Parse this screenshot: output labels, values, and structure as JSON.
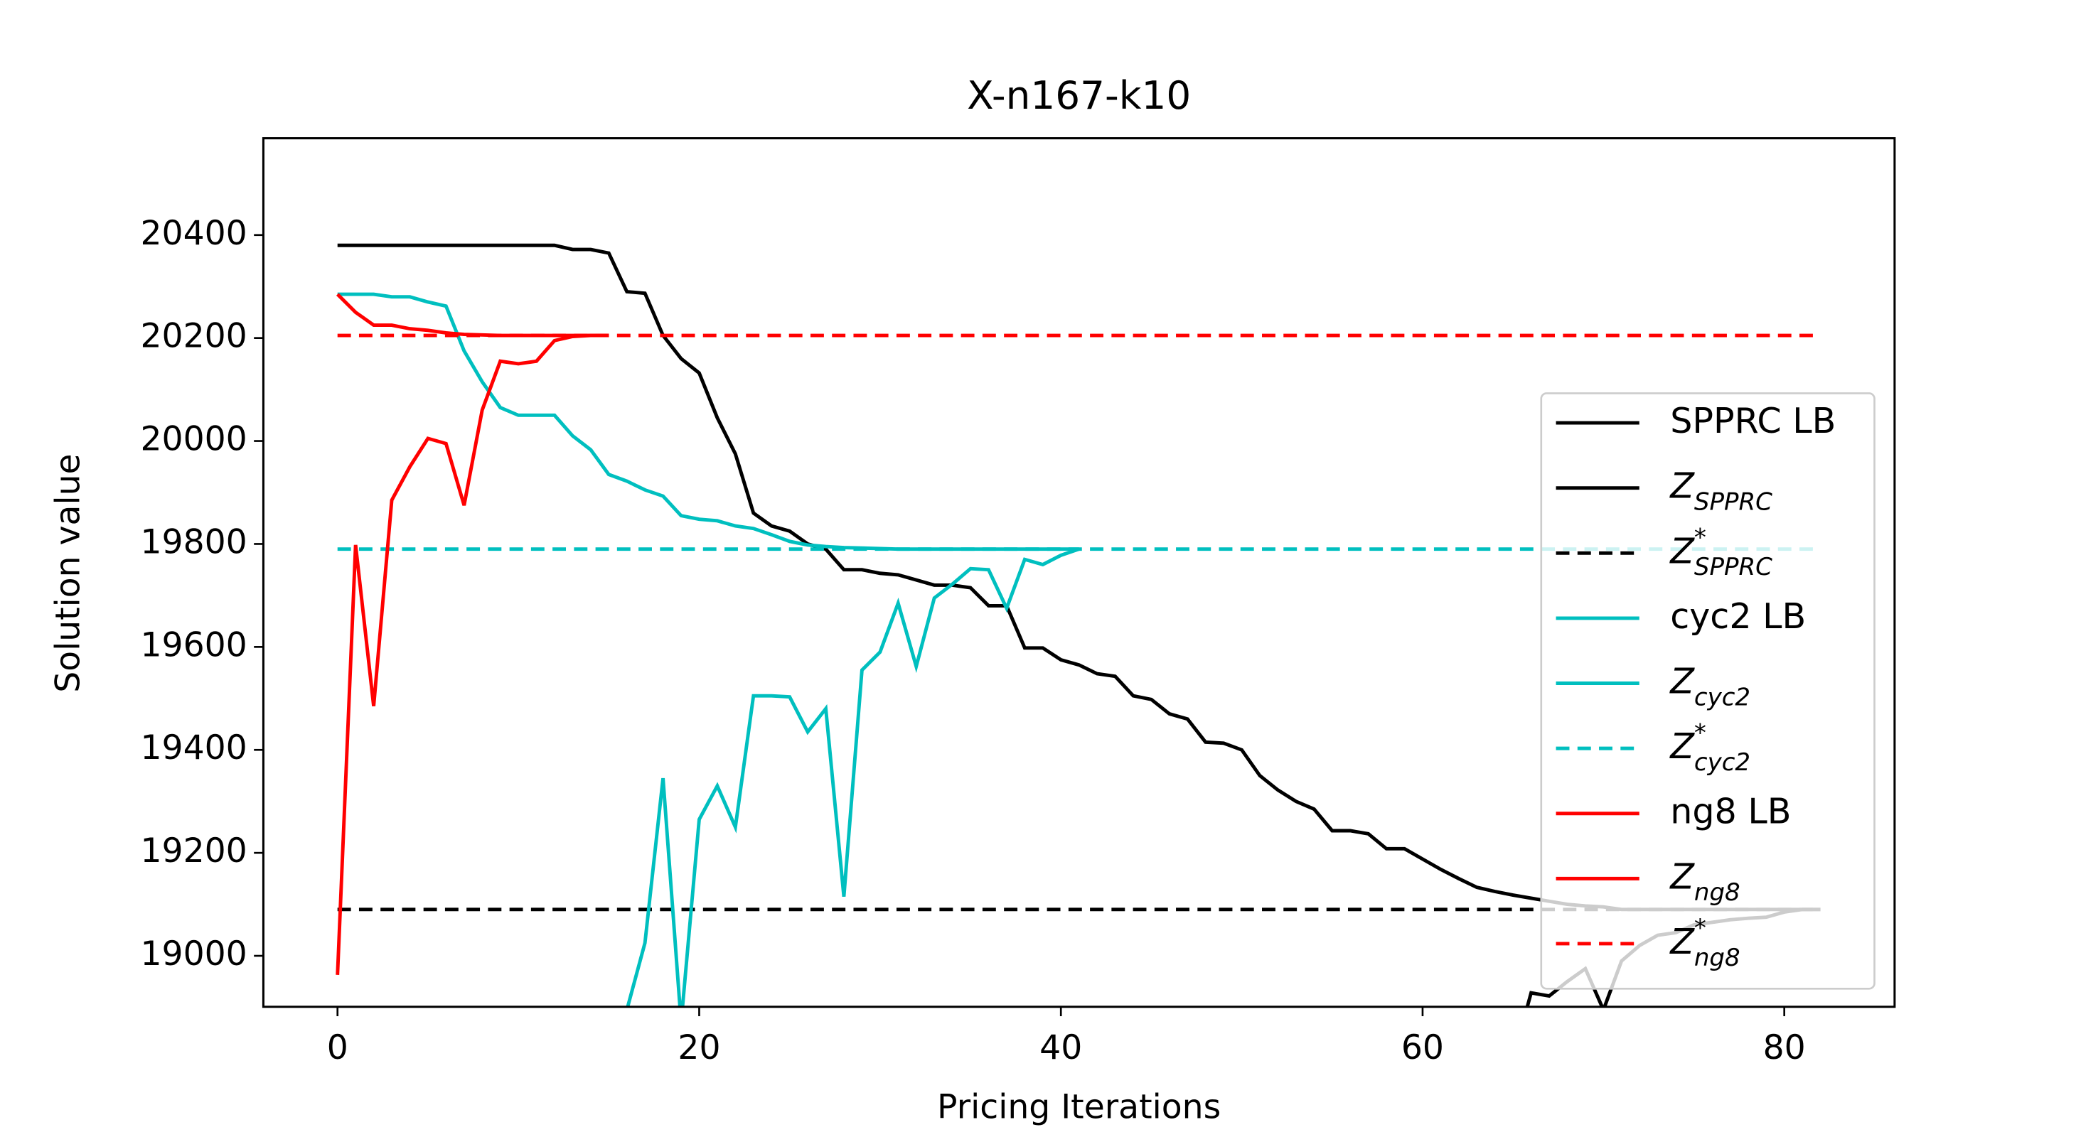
{
  "chart_data": {
    "type": "line",
    "title": "X-n167-k10",
    "x_label": "Pricing Iterations",
    "y_label": "Solution value",
    "xlim": [
      -4.1,
      86.1
    ],
    "xticks": [
      0,
      20,
      40,
      60,
      80
    ],
    "ylim": [
      18901,
      20588
    ],
    "yticks": [
      19000,
      19200,
      19400,
      19600,
      19800,
      20000,
      20200,
      20400
    ],
    "legend": "right",
    "series": [
      {
        "name": "SPPRC LB",
        "color": "#000000",
        "linestyle": "solid",
        "x": [
          65,
          66,
          67,
          68,
          69,
          70,
          71,
          72,
          73,
          74,
          75,
          76,
          77,
          78,
          79,
          80,
          81,
          82
        ],
        "values": [
          18800,
          18928,
          18922,
          18950,
          18975,
          18895,
          18990,
          19020,
          19040,
          19045,
          19060,
          19065,
          19070,
          19073,
          19075,
          19085,
          19090,
          19090
        ]
      },
      {
        "name": "Z",
        "name_sub": "SPPRC",
        "color": "#000000",
        "linestyle": "solid",
        "x": [
          0,
          1,
          2,
          3,
          4,
          5,
          6,
          7,
          8,
          9,
          10,
          11,
          12,
          13,
          14,
          15,
          16,
          17,
          18,
          19,
          20,
          21,
          22,
          23,
          24,
          25,
          26,
          27,
          28,
          29,
          30,
          31,
          32,
          33,
          34,
          35,
          36,
          37,
          38,
          39,
          40,
          41,
          42,
          43,
          44,
          45,
          46,
          47,
          48,
          49,
          50,
          51,
          52,
          53,
          54,
          55,
          56,
          57,
          58,
          59,
          60,
          61,
          62,
          63,
          64,
          65,
          66,
          67,
          68,
          69,
          70,
          71,
          72,
          73,
          74,
          75,
          76,
          77,
          78,
          79,
          80,
          81,
          82
        ],
        "values": [
          20380,
          20380,
          20380,
          20380,
          20380,
          20380,
          20380,
          20380,
          20380,
          20380,
          20380,
          20380,
          20380,
          20372,
          20372,
          20365,
          20290,
          20287,
          20205,
          20160,
          20132,
          20045,
          19975,
          19860,
          19835,
          19825,
          19800,
          19790,
          19750,
          19750,
          19743,
          19740,
          19730,
          19720,
          19720,
          19715,
          19680,
          19680,
          19598,
          19598,
          19575,
          19565,
          19548,
          19543,
          19505,
          19498,
          19470,
          19460,
          19415,
          19413,
          19400,
          19350,
          19322,
          19300,
          19285,
          19243,
          19243,
          19237,
          19208,
          19208,
          19188,
          19168,
          19150,
          19133,
          19125,
          19118,
          19112,
          19106,
          19100,
          19097,
          19095,
          19090,
          19090,
          19090,
          19090,
          19090,
          19090,
          19090,
          19090,
          19090,
          19090,
          19090,
          19090
        ]
      },
      {
        "name": "Z",
        "name_sub": "SPPRC",
        "name_sup": "*",
        "color": "#000000",
        "linestyle": "dashed",
        "x": [
          0,
          82
        ],
        "values": [
          19090,
          19090
        ]
      },
      {
        "name": "cyc2 LB",
        "color": "#00bfbf",
        "linestyle": "solid",
        "x": [
          16,
          17,
          18,
          19,
          20,
          21,
          22,
          23,
          24,
          25,
          26,
          27,
          28,
          29,
          30,
          31,
          32,
          33,
          34,
          35,
          36,
          37,
          38,
          39,
          40,
          41
        ],
        "values": [
          18895,
          19025,
          19345,
          18870,
          19265,
          19330,
          19250,
          19505,
          19505,
          19503,
          19435,
          19480,
          19115,
          19555,
          19590,
          19685,
          19562,
          19695,
          19722,
          19752,
          19750,
          19675,
          19770,
          19760,
          19778,
          19790
        ]
      },
      {
        "name": "Z",
        "name_sub": "cyc2",
        "color": "#00bfbf",
        "linestyle": "solid",
        "x": [
          0,
          1,
          2,
          3,
          4,
          5,
          6,
          7,
          8,
          9,
          10,
          11,
          12,
          13,
          14,
          15,
          16,
          17,
          18,
          19,
          20,
          21,
          22,
          23,
          24,
          25,
          26,
          27,
          28,
          29,
          30,
          31,
          32,
          33,
          34,
          35,
          36,
          37,
          38,
          39,
          40,
          41
        ],
        "values": [
          20285,
          20285,
          20285,
          20280,
          20280,
          20270,
          20262,
          20175,
          20115,
          20065,
          20050,
          20050,
          20050,
          20010,
          19983,
          19935,
          19922,
          19905,
          19893,
          19855,
          19848,
          19845,
          19835,
          19830,
          19818,
          19805,
          19798,
          19795,
          19793,
          19792,
          19791,
          19790,
          19790,
          19790,
          19790,
          19790,
          19790,
          19790,
          19790,
          19790,
          19790,
          19790
        ]
      },
      {
        "name": "Z",
        "name_sub": "cyc2",
        "name_sup": "*",
        "color": "#00bfbf",
        "linestyle": "dashed",
        "x": [
          0,
          82
        ],
        "values": [
          19790,
          19790
        ]
      },
      {
        "name": "ng8 LB",
        "color": "#ff0000",
        "linestyle": "solid",
        "x": [
          0,
          1,
          2,
          3,
          4,
          5,
          6,
          7,
          8,
          9,
          10,
          11,
          12,
          13,
          14,
          15
        ],
        "values": [
          18963,
          19798,
          19485,
          19885,
          19950,
          20005,
          19995,
          19875,
          20060,
          20155,
          20150,
          20155,
          20195,
          20203,
          20205,
          20205
        ]
      },
      {
        "name": "Z",
        "name_sub": "ng8",
        "color": "#ff0000",
        "linestyle": "solid",
        "x": [
          0,
          1,
          2,
          3,
          4,
          5,
          6,
          7,
          8,
          9,
          10,
          11,
          12,
          13,
          14,
          15
        ],
        "values": [
          20285,
          20250,
          20225,
          20225,
          20218,
          20215,
          20210,
          20207,
          20206,
          20205,
          20205,
          20205,
          20205,
          20205,
          20205,
          20205
        ]
      },
      {
        "name": "Z",
        "name_sub": "ng8",
        "name_sup": "*",
        "color": "#ff0000",
        "linestyle": "dashed",
        "x": [
          0,
          82
        ],
        "values": [
          20205,
          20205
        ]
      }
    ]
  }
}
